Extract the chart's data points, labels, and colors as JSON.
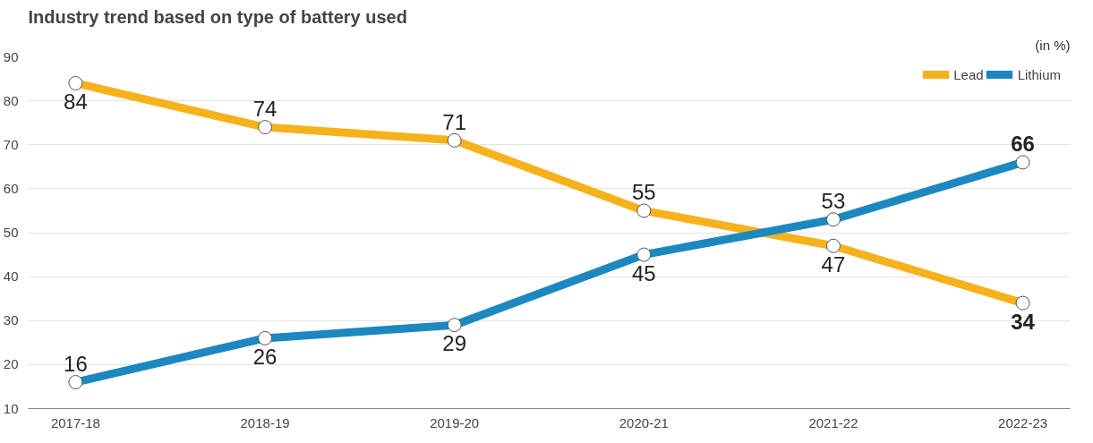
{
  "chart_data": {
    "type": "line",
    "title": "Industry trend based on type of battery used",
    "annotations": [
      "(in %)"
    ],
    "categories": [
      "2017-18",
      "2018-19",
      "2019-20",
      "2020-21",
      "2021-22",
      "2022-23"
    ],
    "series": [
      {
        "name": "Lead",
        "color": "#f5b21c",
        "values": [
          84,
          74,
          71,
          55,
          47,
          34
        ]
      },
      {
        "name": "Lithium",
        "color": "#1d88c0",
        "values": [
          16,
          26,
          29,
          45,
          53,
          66
        ]
      }
    ],
    "ylim": [
      10,
      90
    ],
    "yticks": [
      10,
      20,
      30,
      40,
      50,
      60,
      70,
      80,
      90
    ],
    "grid": "y",
    "legend": "top right",
    "marker": "circle",
    "line_style": "solid",
    "data_labels": true
  }
}
